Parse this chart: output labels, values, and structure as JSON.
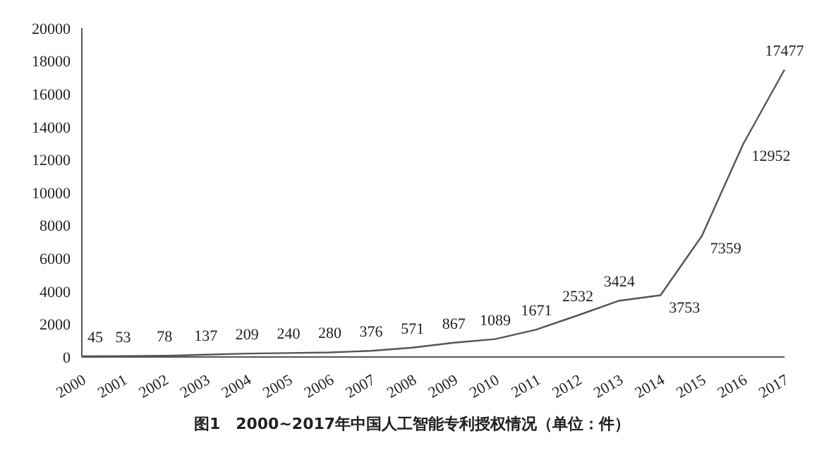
{
  "chart_data": {
    "type": "line",
    "title": "图1　2000~2017年中国人工智能专利授权情况（单位：件）",
    "categories": [
      "2000",
      "2001",
      "2002",
      "2003",
      "2004",
      "2005",
      "2006",
      "2007",
      "2008",
      "2009",
      "2010",
      "2011",
      "2012",
      "2013",
      "2014",
      "2015",
      "2016",
      "2017"
    ],
    "series": [
      {
        "color": "#555555",
        "values": [
          45,
          53,
          78,
          137,
          209,
          240,
          280,
          376,
          571,
          867,
          1089,
          1671,
          2532,
          3424,
          3753,
          7359,
          12952,
          17477
        ]
      }
    ],
    "ylim": [
      0,
      20000
    ],
    "yticks": [
      0,
      2000,
      4000,
      6000,
      8000,
      10000,
      12000,
      14000,
      16000,
      18000,
      20000
    ],
    "data_labels": true,
    "grid": false,
    "legend": false,
    "marker": "none",
    "line_style": "solid"
  }
}
